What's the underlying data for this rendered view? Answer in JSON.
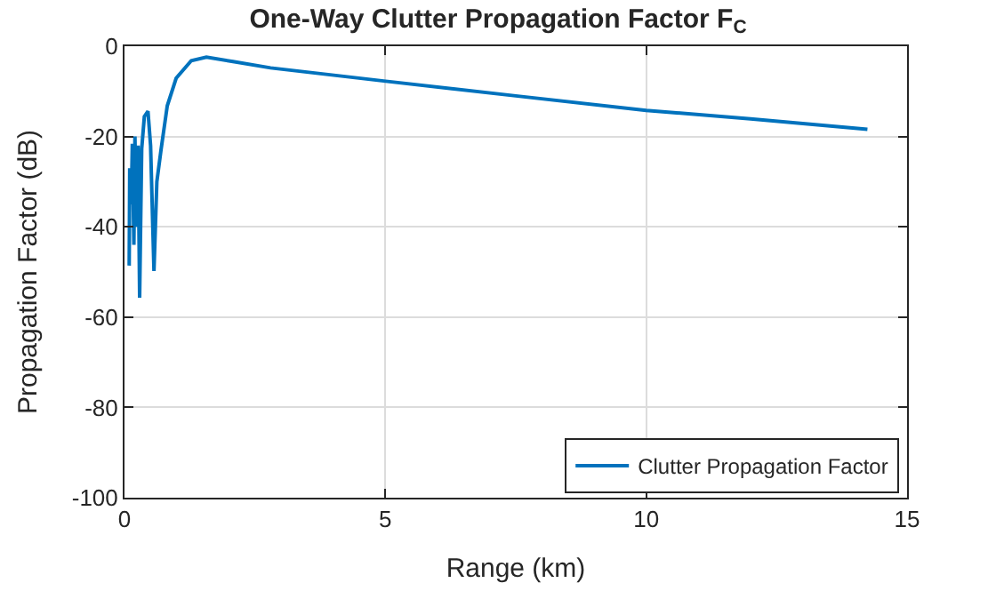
{
  "chart_data": {
    "type": "line",
    "title": "One-Way Clutter Propagation Factor F$_{C}$",
    "xlabel": "Range (km)",
    "ylabel": "Propagation Factor (dB)",
    "x": [
      0.09,
      0.1,
      0.13,
      0.15,
      0.18,
      0.2,
      0.23,
      0.26,
      0.29,
      0.33,
      0.38,
      0.45,
      0.5,
      0.565,
      0.62,
      0.7,
      0.82,
      0.99,
      1.28,
      1.57,
      2.08,
      2.8,
      4.97,
      7.5,
      10.0,
      12.0,
      14.24
    ],
    "series": [
      {
        "name": "Clutter Propagation Factor",
        "color": "#0072bd",
        "values": [
          -48.6,
          -27,
          -35,
          -21.6,
          -44,
          -20,
          -40,
          -22,
          -55.7,
          -22.7,
          -15.6,
          -14.4,
          -22,
          -49.8,
          -30,
          -23,
          -13.2,
          -7.1,
          -3.2,
          -2.4,
          -3.4,
          -4.8,
          -7.7,
          -11,
          -14.2,
          -16.1,
          -18.4
        ]
      }
    ],
    "xlim": [
      0,
      15
    ],
    "xticks": [
      0,
      5,
      10,
      15
    ],
    "ylim": [
      -100,
      0
    ],
    "yticks": [
      -100,
      -80,
      -60,
      -40,
      -20,
      0
    ],
    "grid": true,
    "legend": "bottom right",
    "marker": "none",
    "line_style": "solid"
  }
}
